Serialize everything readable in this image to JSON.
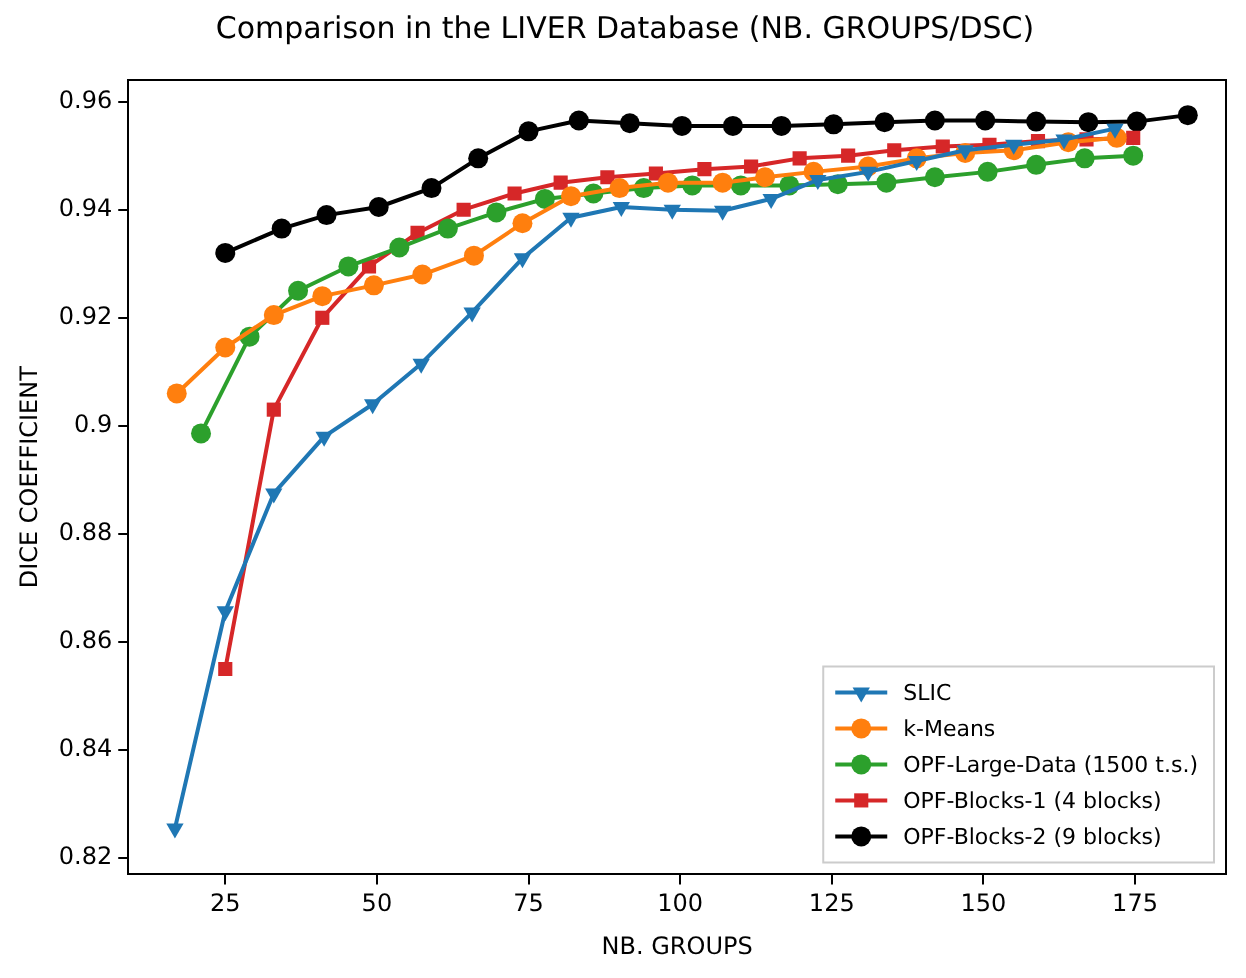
{
  "chart_data": {
    "type": "line",
    "title": "Comparison in the LIVER Database (NB. GROUPS/DSC)",
    "xlabel": "NB. GROUPS",
    "ylabel": "DICE COEFFICIENT",
    "xlim": [
      9,
      190
    ],
    "xticks": [
      25,
      50,
      75,
      100,
      125,
      150,
      175
    ],
    "ylim": [
      0.817,
      0.964
    ],
    "yticks": [
      0.82,
      0.84,
      0.86,
      0.88,
      0.9,
      0.92,
      0.94,
      0.96
    ],
    "legend": "bottom right",
    "series": [
      {
        "name": "SLIC",
        "color": "#1f77b4",
        "marker": "triangle",
        "x": [
          16.7,
          25,
          33,
          41.3,
          49.3,
          57.3,
          65.7,
          74,
          82,
          90.3,
          98.7,
          107,
          115,
          122.7,
          131,
          139,
          147,
          155,
          163.3,
          171.7
        ],
        "values": [
          0.8255,
          0.8657,
          0.8875,
          0.898,
          0.904,
          0.9115,
          0.921,
          0.931,
          0.9385,
          0.9405,
          0.94,
          0.9398,
          0.942,
          0.9455,
          0.947,
          0.949,
          0.951,
          0.952,
          0.953,
          0.955
        ]
      },
      {
        "name": "k-Means",
        "color": "#ff7f0e",
        "marker": "circle",
        "x": [
          17,
          25,
          33,
          41,
          49.5,
          57.5,
          66,
          74,
          82,
          90,
          98,
          107,
          114,
          122,
          131,
          139,
          147,
          155,
          164,
          172
        ],
        "values": [
          0.906,
          0.9145,
          0.9205,
          0.924,
          0.926,
          0.928,
          0.9315,
          0.9375,
          0.9425,
          0.944,
          0.945,
          0.945,
          0.946,
          0.947,
          0.948,
          0.9495,
          0.9505,
          0.951,
          0.9525,
          0.9533
        ]
      },
      {
        "name": "OPF-Large-Data (1500 t.s.)",
        "color": "#2ca02c",
        "marker": "circle",
        "x": [
          21,
          29,
          37,
          45.3,
          53.7,
          61.7,
          69.7,
          77.7,
          85.7,
          94,
          102,
          110,
          118,
          126,
          134,
          142,
          150.7,
          158.7,
          166.7,
          174.7
        ],
        "values": [
          0.8986,
          0.9165,
          0.925,
          0.9295,
          0.933,
          0.9365,
          0.9395,
          0.942,
          0.943,
          0.944,
          0.9445,
          0.9445,
          0.9445,
          0.9447,
          0.945,
          0.946,
          0.947,
          0.9483,
          0.9495,
          0.95
        ]
      },
      {
        "name": "OPF-Blocks-1 (4 blocks)",
        "color": "#d62728",
        "marker": "square",
        "x": [
          25,
          33,
          41,
          48.7,
          56.7,
          64.3,
          72.7,
          80.3,
          88,
          96,
          104,
          111.7,
          119.7,
          127.7,
          135.3,
          143.3,
          151,
          159,
          167,
          174.7
        ],
        "values": [
          0.855,
          0.903,
          0.92,
          0.9295,
          0.9357,
          0.94,
          0.943,
          0.945,
          0.946,
          0.9467,
          0.9475,
          0.948,
          0.9495,
          0.95,
          0.951,
          0.9517,
          0.952,
          0.9527,
          0.953,
          0.9533
        ]
      },
      {
        "name": "OPF-Blocks-2 (9 blocks)",
        "color": "#000000",
        "marker": "circle",
        "x": [
          25,
          34.3,
          41.7,
          50.3,
          59,
          66.7,
          75,
          83.3,
          91.7,
          100.3,
          108.7,
          116.7,
          125.3,
          133.7,
          142,
          150.3,
          158.7,
          167.3,
          175.3,
          183.7
        ],
        "values": [
          0.932,
          0.9365,
          0.939,
          0.9405,
          0.944,
          0.9495,
          0.9545,
          0.9565,
          0.956,
          0.9555,
          0.9555,
          0.9555,
          0.9558,
          0.9562,
          0.9565,
          0.9565,
          0.9563,
          0.9562,
          0.9563,
          0.9575
        ]
      }
    ]
  }
}
